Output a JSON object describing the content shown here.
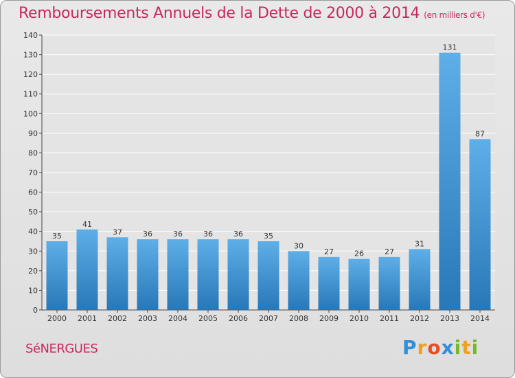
{
  "header": {
    "title": "Remboursements Annuels de la Dette de 2000 à 2014",
    "unit": "(en milliers d'€)"
  },
  "commune": "SéNERGUES",
  "logo": {
    "text": "Proxiti",
    "letters": [
      "P",
      "r",
      "o",
      "x",
      "i",
      "t",
      "i"
    ]
  },
  "colors": {
    "title": "#c8285f",
    "bar_top": "#5eaee8",
    "bar_bottom": "#2878b8",
    "axis": "#444444",
    "grid": "#ffffff"
  },
  "chart_data": {
    "type": "bar",
    "title": "Remboursements Annuels de la Dette de 2000 à 2014",
    "xlabel": "",
    "ylabel": "",
    "categories": [
      "2000",
      "2001",
      "2002",
      "2003",
      "2004",
      "2005",
      "2006",
      "2007",
      "2008",
      "2009",
      "2010",
      "2011",
      "2012",
      "2013",
      "2014"
    ],
    "values": [
      35,
      41,
      37,
      36,
      36,
      36,
      36,
      35,
      30,
      27,
      26,
      27,
      31,
      131,
      87
    ],
    "ylim": [
      0,
      140
    ],
    "yticks": [
      0,
      10,
      20,
      30,
      40,
      50,
      60,
      70,
      80,
      90,
      100,
      110,
      120,
      130,
      140
    ],
    "grid": true,
    "data_labels": true
  }
}
